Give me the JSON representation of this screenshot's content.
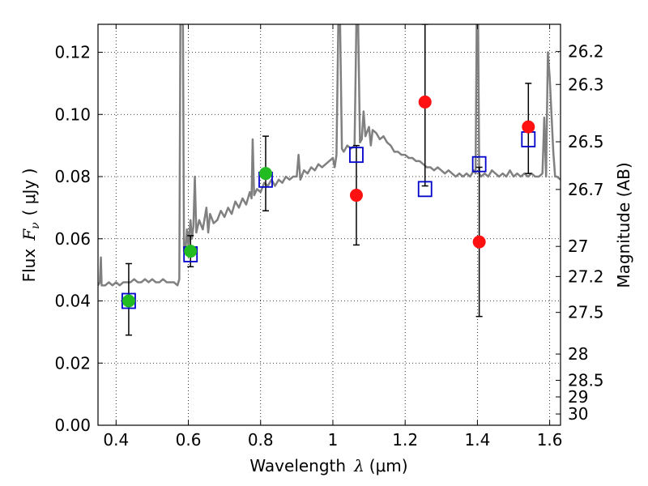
{
  "chart_data": {
    "type": "scatter",
    "xlabel": {
      "prefix": "Wavelength",
      "symbol": "λ",
      "unit": "(μm)"
    },
    "ylabel": {
      "prefix": "Flux",
      "symbol": "F",
      "subscript": "ν",
      "unit": "( μJy )"
    },
    "y2label": "Magnitude (AB)",
    "xlim": [
      0.35,
      1.63
    ],
    "ylim": [
      0.0,
      0.129
    ],
    "grid": true,
    "x_ticks": [
      {
        "v": 0.4,
        "label": "0.4"
      },
      {
        "v": 0.6,
        "label": "0.6"
      },
      {
        "v": 0.8,
        "label": "0.8"
      },
      {
        "v": 1.0,
        "label": "1"
      },
      {
        "v": 1.2,
        "label": "1.2"
      },
      {
        "v": 1.4,
        "label": "1.4"
      },
      {
        "v": 1.6,
        "label": "1.6"
      }
    ],
    "y_ticks": [
      {
        "v": 0.0,
        "label": "0.00"
      },
      {
        "v": 0.02,
        "label": "0.02"
      },
      {
        "v": 0.04,
        "label": "0.04"
      },
      {
        "v": 0.06,
        "label": "0.06"
      },
      {
        "v": 0.08,
        "label": "0.08"
      },
      {
        "v": 0.1,
        "label": "0.10"
      },
      {
        "v": 0.12,
        "label": "0.12"
      }
    ],
    "mag_ticks": [
      {
        "v": 26.2,
        "label": "26.2"
      },
      {
        "v": 26.3,
        "label": "26.3"
      },
      {
        "v": 26.5,
        "label": "26.5"
      },
      {
        "v": 26.7,
        "label": "26.7"
      },
      {
        "v": 27.0,
        "label": "27"
      },
      {
        "v": 27.2,
        "label": "27.2"
      },
      {
        "v": 27.5,
        "label": "27.5"
      },
      {
        "v": 28.0,
        "label": "28"
      },
      {
        "v": 28.5,
        "label": "28.5"
      },
      {
        "v": 29.0,
        "label": "29"
      },
      {
        "v": 30.0,
        "label": "30"
      }
    ],
    "series": [
      {
        "kind": "model-sed",
        "color": "#808080",
        "points": [
          [
            0.35,
            0.045
          ],
          [
            0.355,
            0.046
          ],
          [
            0.358,
            0.054
          ],
          [
            0.36,
            0.045
          ],
          [
            0.37,
            0.045
          ],
          [
            0.38,
            0.046
          ],
          [
            0.39,
            0.045
          ],
          [
            0.4,
            0.046
          ],
          [
            0.41,
            0.045
          ],
          [
            0.42,
            0.046
          ],
          [
            0.43,
            0.046
          ],
          [
            0.44,
            0.046
          ],
          [
            0.45,
            0.047
          ],
          [
            0.46,
            0.046
          ],
          [
            0.47,
            0.046
          ],
          [
            0.48,
            0.047
          ],
          [
            0.49,
            0.046
          ],
          [
            0.5,
            0.047
          ],
          [
            0.51,
            0.046
          ],
          [
            0.52,
            0.046
          ],
          [
            0.53,
            0.047
          ],
          [
            0.54,
            0.046
          ],
          [
            0.55,
            0.046
          ],
          [
            0.56,
            0.046
          ],
          [
            0.57,
            0.045
          ],
          [
            0.575,
            0.047
          ],
          [
            0.578,
            0.129
          ],
          [
            0.58,
            0.129
          ],
          [
            0.585,
            0.129
          ],
          [
            0.588,
            0.056
          ],
          [
            0.592,
            0.056
          ],
          [
            0.596,
            0.063
          ],
          [
            0.6,
            0.058
          ],
          [
            0.606,
            0.066
          ],
          [
            0.61,
            0.06
          ],
          [
            0.614,
            0.064
          ],
          [
            0.618,
            0.08
          ],
          [
            0.622,
            0.062
          ],
          [
            0.63,
            0.066
          ],
          [
            0.64,
            0.063
          ],
          [
            0.65,
            0.07
          ],
          [
            0.655,
            0.062
          ],
          [
            0.66,
            0.068
          ],
          [
            0.67,
            0.065
          ],
          [
            0.68,
            0.066
          ],
          [
            0.69,
            0.069
          ],
          [
            0.7,
            0.067
          ],
          [
            0.71,
            0.07
          ],
          [
            0.72,
            0.068
          ],
          [
            0.73,
            0.072
          ],
          [
            0.74,
            0.07
          ],
          [
            0.75,
            0.073
          ],
          [
            0.76,
            0.071
          ],
          [
            0.77,
            0.075
          ],
          [
            0.775,
            0.073
          ],
          [
            0.778,
            0.092
          ],
          [
            0.782,
            0.074
          ],
          [
            0.79,
            0.076
          ],
          [
            0.8,
            0.075
          ],
          [
            0.81,
            0.078
          ],
          [
            0.82,
            0.077
          ],
          [
            0.83,
            0.079
          ],
          [
            0.84,
            0.077
          ],
          [
            0.85,
            0.079
          ],
          [
            0.86,
            0.078
          ],
          [
            0.87,
            0.08
          ],
          [
            0.88,
            0.079
          ],
          [
            0.89,
            0.08
          ],
          [
            0.9,
            0.08
          ],
          [
            0.905,
            0.087
          ],
          [
            0.91,
            0.079
          ],
          [
            0.92,
            0.082
          ],
          [
            0.93,
            0.081
          ],
          [
            0.94,
            0.083
          ],
          [
            0.95,
            0.082
          ],
          [
            0.96,
            0.084
          ],
          [
            0.97,
            0.083
          ],
          [
            0.98,
            0.084
          ],
          [
            0.99,
            0.085
          ],
          [
            1.0,
            0.086
          ],
          [
            1.005,
            0.083
          ],
          [
            1.01,
            0.087
          ],
          [
            1.015,
            0.129
          ],
          [
            1.02,
            0.129
          ],
          [
            1.025,
            0.089
          ],
          [
            1.03,
            0.088
          ],
          [
            1.04,
            0.09
          ],
          [
            1.05,
            0.089
          ],
          [
            1.06,
            0.09
          ],
          [
            1.065,
            0.129
          ],
          [
            1.07,
            0.129
          ],
          [
            1.075,
            0.091
          ],
          [
            1.08,
            0.092
          ],
          [
            1.085,
            0.101
          ],
          [
            1.09,
            0.093
          ],
          [
            1.1,
            0.096
          ],
          [
            1.105,
            0.09
          ],
          [
            1.11,
            0.095
          ],
          [
            1.12,
            0.094
          ],
          [
            1.13,
            0.092
          ],
          [
            1.14,
            0.093
          ],
          [
            1.15,
            0.091
          ],
          [
            1.16,
            0.09
          ],
          [
            1.17,
            0.088
          ],
          [
            1.18,
            0.088
          ],
          [
            1.19,
            0.087
          ],
          [
            1.2,
            0.087
          ],
          [
            1.21,
            0.086
          ],
          [
            1.22,
            0.086
          ],
          [
            1.23,
            0.085
          ],
          [
            1.24,
            0.085
          ],
          [
            1.25,
            0.084
          ],
          [
            1.26,
            0.083
          ],
          [
            1.27,
            0.083
          ],
          [
            1.28,
            0.082
          ],
          [
            1.29,
            0.083
          ],
          [
            1.3,
            0.082
          ],
          [
            1.31,
            0.081
          ],
          [
            1.32,
            0.082
          ],
          [
            1.33,
            0.081
          ],
          [
            1.34,
            0.08
          ],
          [
            1.35,
            0.081
          ],
          [
            1.36,
            0.08
          ],
          [
            1.37,
            0.081
          ],
          [
            1.38,
            0.08
          ],
          [
            1.39,
            0.082
          ],
          [
            1.395,
            0.081
          ],
          [
            1.398,
            0.129
          ],
          [
            1.402,
            0.129
          ],
          [
            1.405,
            0.081
          ],
          [
            1.41,
            0.08
          ],
          [
            1.42,
            0.081
          ],
          [
            1.43,
            0.08
          ],
          [
            1.44,
            0.082
          ],
          [
            1.45,
            0.081
          ],
          [
            1.46,
            0.08
          ],
          [
            1.47,
            0.081
          ],
          [
            1.48,
            0.08
          ],
          [
            1.49,
            0.082
          ],
          [
            1.5,
            0.08
          ],
          [
            1.51,
            0.081
          ],
          [
            1.52,
            0.08
          ],
          [
            1.53,
            0.081
          ],
          [
            1.54,
            0.08
          ],
          [
            1.55,
            0.081
          ],
          [
            1.56,
            0.08
          ],
          [
            1.57,
            0.08
          ],
          [
            1.58,
            0.081
          ],
          [
            1.585,
            0.099
          ],
          [
            1.59,
            0.08
          ],
          [
            1.595,
            0.12
          ],
          [
            1.6,
            0.112
          ],
          [
            1.605,
            0.1
          ],
          [
            1.61,
            0.088
          ],
          [
            1.615,
            0.08
          ],
          [
            1.62,
            0.08
          ],
          [
            1.63,
            0.079
          ]
        ]
      },
      {
        "kind": "model-photometry",
        "color": "#0000cc",
        "points": [
          {
            "x": 0.435,
            "y": 0.04
          },
          {
            "x": 0.606,
            "y": 0.055
          },
          {
            "x": 0.814,
            "y": 0.079
          },
          {
            "x": 1.065,
            "y": 0.087
          },
          {
            "x": 1.255,
            "y": 0.076
          },
          {
            "x": 1.405,
            "y": 0.084
          },
          {
            "x": 1.541,
            "y": 0.092
          }
        ]
      },
      {
        "kind": "detections",
        "color": "#22bb22",
        "points": [
          {
            "x": 0.435,
            "y": 0.04,
            "yerr_low": 0.029,
            "yerr_high": 0.052
          },
          {
            "x": 0.606,
            "y": 0.056,
            "yerr_low": 0.051,
            "yerr_high": 0.061
          },
          {
            "x": 0.814,
            "y": 0.081,
            "yerr_low": 0.069,
            "yerr_high": 0.093
          }
        ]
      },
      {
        "kind": "weak-detections",
        "color": "#ff1111",
        "points": [
          {
            "x": 1.065,
            "y": 0.074,
            "yerr_low": 0.058,
            "yerr_high": 0.09
          },
          {
            "x": 1.255,
            "y": 0.104,
            "yerr_low": 0.077,
            "yerr_high": 0.129
          },
          {
            "x": 1.405,
            "y": 0.059,
            "yerr_low": 0.035,
            "yerr_high": 0.083
          },
          {
            "x": 1.541,
            "y": 0.096,
            "yerr_low": 0.081,
            "yerr_high": 0.11
          }
        ]
      }
    ]
  }
}
